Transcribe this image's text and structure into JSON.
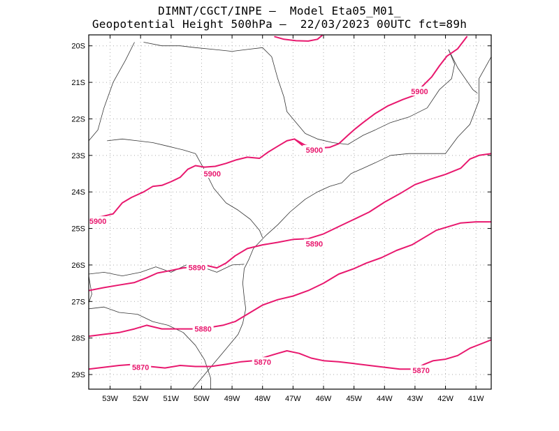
{
  "header": {
    "line1": "DIMNT/CGCT/INPE –  Model Eta05_M01_",
    "line2": "Geopotential Height 500hPa –  22/03/2023 00UTC fct=89h"
  },
  "map": {
    "lon_range": [
      -53.7,
      -40.5
    ],
    "lat_range": [
      -29.4,
      -19.7
    ],
    "lon_ticks": [
      {
        "value": -53,
        "label": "53W"
      },
      {
        "value": -52,
        "label": "52W"
      },
      {
        "value": -51,
        "label": "51W"
      },
      {
        "value": -50,
        "label": "50W"
      },
      {
        "value": -49,
        "label": "49W"
      },
      {
        "value": -48,
        "label": "48W"
      },
      {
        "value": -47,
        "label": "47W"
      },
      {
        "value": -46,
        "label": "46W"
      },
      {
        "value": -45,
        "label": "45W"
      },
      {
        "value": -44,
        "label": "44W"
      },
      {
        "value": -43,
        "label": "43W"
      },
      {
        "value": -42,
        "label": "42W"
      },
      {
        "value": -41,
        "label": "41W"
      }
    ],
    "lat_ticks": [
      {
        "value": -20,
        "label": "20S"
      },
      {
        "value": -21,
        "label": "21S"
      },
      {
        "value": -22,
        "label": "22S"
      },
      {
        "value": -23,
        "label": "23S"
      },
      {
        "value": -24,
        "label": "24S"
      },
      {
        "value": -25,
        "label": "25S"
      },
      {
        "value": -26,
        "label": "26S"
      },
      {
        "value": -27,
        "label": "27S"
      },
      {
        "value": -28,
        "label": "28S"
      },
      {
        "value": -29,
        "label": "29S"
      }
    ],
    "contour_color": "#e8186e",
    "border_color": "#333333",
    "contours": [
      {
        "name": "contour-5900-north-top",
        "points": [
          [
            -47.6,
            -19.75
          ],
          [
            -47.3,
            -19.82
          ],
          [
            -46.9,
            -19.86
          ],
          [
            -46.5,
            -19.87
          ],
          [
            -46.2,
            -19.82
          ],
          [
            -46.05,
            -19.72
          ]
        ]
      },
      {
        "name": "contour-5900-north",
        "points": [
          [
            -46.9,
            -22.58
          ],
          [
            -46.6,
            -22.72
          ],
          [
            -46.2,
            -22.8
          ],
          [
            -45.8,
            -22.78
          ],
          [
            -45.5,
            -22.68
          ],
          [
            -45.2,
            -22.45
          ],
          [
            -45.0,
            -22.3
          ],
          [
            -44.7,
            -22.1
          ],
          [
            -44.3,
            -21.85
          ],
          [
            -43.9,
            -21.65
          ],
          [
            -43.4,
            -21.47
          ],
          [
            -43.0,
            -21.35
          ],
          [
            -42.75,
            -21.1
          ],
          [
            -42.45,
            -20.85
          ],
          [
            -42.2,
            -20.55
          ],
          [
            -41.95,
            -20.28
          ],
          [
            -41.6,
            -20.08
          ],
          [
            -41.3,
            -19.75
          ]
        ]
      },
      {
        "name": "contour-5900-south",
        "points": [
          [
            -53.7,
            -24.72
          ],
          [
            -53.3,
            -24.68
          ],
          [
            -52.9,
            -24.6
          ],
          [
            -52.6,
            -24.3
          ],
          [
            -52.3,
            -24.15
          ],
          [
            -51.9,
            -24.0
          ],
          [
            -51.6,
            -23.85
          ],
          [
            -51.3,
            -23.82
          ],
          [
            -51.0,
            -23.72
          ],
          [
            -50.7,
            -23.6
          ],
          [
            -50.45,
            -23.38
          ],
          [
            -50.2,
            -23.28
          ],
          [
            -49.9,
            -23.32
          ],
          [
            -49.55,
            -23.3
          ],
          [
            -49.2,
            -23.22
          ],
          [
            -48.85,
            -23.12
          ],
          [
            -48.5,
            -23.05
          ],
          [
            -48.1,
            -23.08
          ],
          [
            -47.8,
            -22.9
          ],
          [
            -47.5,
            -22.75
          ],
          [
            -47.2,
            -22.6
          ],
          [
            -46.95,
            -22.55
          ],
          [
            -46.7,
            -22.72
          ]
        ]
      },
      {
        "name": "contour-5890",
        "points": [
          [
            -53.7,
            -26.7
          ],
          [
            -53.2,
            -26.62
          ],
          [
            -52.7,
            -26.55
          ],
          [
            -52.2,
            -26.48
          ],
          [
            -51.8,
            -26.35
          ],
          [
            -51.45,
            -26.22
          ],
          [
            -51.0,
            -26.15
          ],
          [
            -50.6,
            -26.08
          ],
          [
            -50.2,
            -26.05
          ],
          [
            -49.8,
            -26.02
          ],
          [
            -49.5,
            -26.08
          ],
          [
            -49.2,
            -25.95
          ],
          [
            -48.9,
            -25.75
          ],
          [
            -48.5,
            -25.55
          ],
          [
            -48.0,
            -25.45
          ],
          [
            -47.5,
            -25.38
          ],
          [
            -47.0,
            -25.3
          ],
          [
            -46.5,
            -25.28
          ],
          [
            -46.0,
            -25.15
          ],
          [
            -45.5,
            -24.95
          ],
          [
            -45.0,
            -24.75
          ],
          [
            -44.5,
            -24.55
          ],
          [
            -44.0,
            -24.28
          ],
          [
            -43.5,
            -24.05
          ],
          [
            -43.0,
            -23.8
          ],
          [
            -42.5,
            -23.65
          ],
          [
            -42.0,
            -23.52
          ],
          [
            -41.5,
            -23.35
          ],
          [
            -41.2,
            -23.1
          ],
          [
            -40.9,
            -23.0
          ],
          [
            -40.5,
            -22.95
          ]
        ]
      },
      {
        "name": "contour-5880",
        "points": [
          [
            -53.7,
            -27.95
          ],
          [
            -53.2,
            -27.9
          ],
          [
            -52.7,
            -27.85
          ],
          [
            -52.2,
            -27.75
          ],
          [
            -51.8,
            -27.65
          ],
          [
            -51.3,
            -27.75
          ],
          [
            -50.8,
            -27.75
          ],
          [
            -50.3,
            -27.75
          ],
          [
            -49.8,
            -27.72
          ],
          [
            -49.3,
            -27.65
          ],
          [
            -48.9,
            -27.55
          ],
          [
            -48.5,
            -27.35
          ],
          [
            -48.0,
            -27.1
          ],
          [
            -47.5,
            -26.95
          ],
          [
            -47.0,
            -26.85
          ],
          [
            -46.5,
            -26.7
          ],
          [
            -46.0,
            -26.5
          ],
          [
            -45.5,
            -26.25
          ],
          [
            -45.0,
            -26.1
          ],
          [
            -44.6,
            -25.95
          ],
          [
            -44.1,
            -25.8
          ],
          [
            -43.6,
            -25.6
          ],
          [
            -43.1,
            -25.45
          ],
          [
            -42.7,
            -25.25
          ],
          [
            -42.3,
            -25.05
          ],
          [
            -41.9,
            -24.95
          ],
          [
            -41.5,
            -24.85
          ],
          [
            -41.0,
            -24.82
          ],
          [
            -40.5,
            -24.82
          ]
        ]
      },
      {
        "name": "contour-5870",
        "points": [
          [
            -53.7,
            -28.85
          ],
          [
            -53.2,
            -28.8
          ],
          [
            -52.7,
            -28.75
          ],
          [
            -52.2,
            -28.72
          ],
          [
            -51.7,
            -28.78
          ],
          [
            -51.2,
            -28.82
          ],
          [
            -50.7,
            -28.75
          ],
          [
            -50.2,
            -28.78
          ],
          [
            -49.7,
            -28.78
          ],
          [
            -49.2,
            -28.72
          ],
          [
            -48.7,
            -28.65
          ],
          [
            -48.3,
            -28.62
          ],
          [
            -47.9,
            -28.52
          ],
          [
            -47.5,
            -28.42
          ],
          [
            -47.2,
            -28.35
          ],
          [
            -46.8,
            -28.42
          ],
          [
            -46.4,
            -28.55
          ],
          [
            -46.0,
            -28.62
          ],
          [
            -45.5,
            -28.65
          ],
          [
            -45.0,
            -28.7
          ],
          [
            -44.5,
            -28.75
          ],
          [
            -44.0,
            -28.8
          ],
          [
            -43.5,
            -28.85
          ],
          [
            -43.0,
            -28.85
          ],
          [
            -42.7,
            -28.72
          ],
          [
            -42.4,
            -28.62
          ],
          [
            -42.0,
            -28.58
          ],
          [
            -41.6,
            -28.48
          ],
          [
            -41.2,
            -28.28
          ],
          [
            -40.8,
            -28.15
          ],
          [
            -40.5,
            -28.05
          ]
        ]
      }
    ],
    "contour_labels": [
      {
        "name": "label-5900-a",
        "text": "5900",
        "lon": -42.85,
        "lat": -21.25
      },
      {
        "name": "label-5900-b",
        "text": "5900",
        "lon": -46.3,
        "lat": -22.85
      },
      {
        "name": "label-5900-c",
        "text": "5900",
        "lon": -49.65,
        "lat": -23.5
      },
      {
        "name": "label-5900-d",
        "text": "5900",
        "lon": -53.4,
        "lat": -24.8
      },
      {
        "name": "label-5890-a",
        "text": "5890",
        "lon": -46.3,
        "lat": -25.42
      },
      {
        "name": "label-5890-b",
        "text": "5890",
        "lon": -50.15,
        "lat": -26.07
      },
      {
        "name": "label-5880",
        "text": "5880",
        "lon": -49.95,
        "lat": -27.75
      },
      {
        "name": "label-5870-a",
        "text": "5870",
        "lon": -52.0,
        "lat": -28.8
      },
      {
        "name": "label-5870-b",
        "text": "5870",
        "lon": -48.0,
        "lat": -28.66
      },
      {
        "name": "label-5870-c",
        "text": "5870",
        "lon": -42.8,
        "lat": -28.88
      }
    ],
    "borders": [
      {
        "name": "coastline",
        "points": [
          [
            -50.3,
            -29.4
          ],
          [
            -50.0,
            -29.1
          ],
          [
            -49.6,
            -28.7
          ],
          [
            -49.2,
            -28.3
          ],
          [
            -48.8,
            -27.9
          ],
          [
            -48.65,
            -27.6
          ],
          [
            -48.55,
            -27.2
          ],
          [
            -48.6,
            -26.9
          ],
          [
            -48.65,
            -26.5
          ],
          [
            -48.6,
            -26.1
          ],
          [
            -48.45,
            -25.85
          ],
          [
            -48.3,
            -25.55
          ],
          [
            -47.9,
            -25.2
          ],
          [
            -47.5,
            -24.9
          ],
          [
            -47.1,
            -24.55
          ],
          [
            -46.6,
            -24.2
          ],
          [
            -46.2,
            -24.0
          ],
          [
            -45.8,
            -23.85
          ],
          [
            -45.4,
            -23.75
          ],
          [
            -45.1,
            -23.5
          ],
          [
            -44.7,
            -23.35
          ],
          [
            -44.3,
            -23.2
          ],
          [
            -43.8,
            -23.0
          ],
          [
            -43.2,
            -22.95
          ],
          [
            -42.7,
            -22.95
          ],
          [
            -42.0,
            -22.95
          ],
          [
            -41.6,
            -22.5
          ],
          [
            -41.2,
            -22.15
          ],
          [
            -40.9,
            -21.5
          ],
          [
            -40.9,
            -20.9
          ],
          [
            -40.7,
            -20.6
          ],
          [
            -40.5,
            -20.3
          ]
        ]
      },
      {
        "name": "border-sp-mg",
        "points": [
          [
            -51.9,
            -19.9
          ],
          [
            -51.3,
            -20.0
          ],
          [
            -50.7,
            -20.0
          ],
          [
            -50.2,
            -20.05
          ],
          [
            -49.6,
            -20.1
          ],
          [
            -49.0,
            -20.15
          ],
          [
            -48.5,
            -20.1
          ],
          [
            -48.0,
            -20.05
          ],
          [
            -47.7,
            -20.3
          ],
          [
            -47.5,
            -20.9
          ],
          [
            -47.3,
            -21.4
          ],
          [
            -47.2,
            -21.8
          ],
          [
            -46.9,
            -22.1
          ],
          [
            -46.6,
            -22.4
          ],
          [
            -46.2,
            -22.55
          ],
          [
            -45.7,
            -22.65
          ],
          [
            -45.2,
            -22.7
          ],
          [
            -44.7,
            -22.45
          ],
          [
            -44.3,
            -22.3
          ]
        ]
      },
      {
        "name": "border-mg-rj",
        "points": [
          [
            -44.3,
            -22.3
          ],
          [
            -43.8,
            -22.1
          ],
          [
            -43.2,
            -21.95
          ],
          [
            -42.6,
            -21.7
          ],
          [
            -42.2,
            -21.2
          ],
          [
            -41.8,
            -20.9
          ],
          [
            -41.7,
            -20.5
          ],
          [
            -41.9,
            -20.1
          ]
        ]
      },
      {
        "name": "border-rj-es",
        "points": [
          [
            -41.9,
            -20.1
          ],
          [
            -41.6,
            -20.6
          ],
          [
            -41.1,
            -21.2
          ],
          [
            -40.95,
            -21.3
          ]
        ]
      },
      {
        "name": "border-ms-sp-pr",
        "points": [
          [
            -52.2,
            -19.9
          ],
          [
            -52.5,
            -20.4
          ],
          [
            -52.9,
            -21.0
          ],
          [
            -53.2,
            -21.7
          ],
          [
            -53.4,
            -22.3
          ],
          [
            -53.7,
            -22.6
          ]
        ]
      },
      {
        "name": "border-sp-pr",
        "points": [
          [
            -53.1,
            -22.6
          ],
          [
            -52.6,
            -22.55
          ],
          [
            -52.1,
            -22.6
          ],
          [
            -51.6,
            -22.65
          ],
          [
            -51.1,
            -22.75
          ],
          [
            -50.6,
            -22.85
          ],
          [
            -50.2,
            -22.95
          ],
          [
            -49.9,
            -23.4
          ],
          [
            -49.6,
            -23.9
          ],
          [
            -49.2,
            -24.3
          ],
          [
            -48.8,
            -24.5
          ],
          [
            -48.4,
            -24.75
          ],
          [
            -48.1,
            -25.05
          ],
          [
            -48.0,
            -25.25
          ]
        ]
      },
      {
        "name": "border-pr-sc",
        "points": [
          [
            -53.7,
            -26.25
          ],
          [
            -53.2,
            -26.2
          ],
          [
            -52.6,
            -26.3
          ],
          [
            -52.0,
            -26.2
          ],
          [
            -51.5,
            -26.05
          ],
          [
            -51.0,
            -26.2
          ],
          [
            -50.5,
            -26.0
          ],
          [
            -50.0,
            -26.05
          ],
          [
            -49.5,
            -26.2
          ],
          [
            -49.0,
            -26.0
          ],
          [
            -48.6,
            -25.98
          ]
        ]
      },
      {
        "name": "border-sc-rs",
        "points": [
          [
            -53.7,
            -27.2
          ],
          [
            -53.2,
            -27.15
          ],
          [
            -52.7,
            -27.3
          ],
          [
            -52.1,
            -27.35
          ],
          [
            -51.6,
            -27.55
          ],
          [
            -51.1,
            -27.65
          ],
          [
            -50.6,
            -27.85
          ],
          [
            -50.2,
            -28.2
          ],
          [
            -49.9,
            -28.6
          ],
          [
            -49.7,
            -29.1
          ],
          [
            -49.7,
            -29.4
          ]
        ]
      },
      {
        "name": "border-argentina",
        "points": [
          [
            -53.7,
            -25.6
          ],
          [
            -53.85,
            -25.9
          ],
          [
            -53.7,
            -26.3
          ],
          [
            -53.6,
            -26.8
          ],
          [
            -53.75,
            -27.15
          ]
        ]
      }
    ]
  }
}
